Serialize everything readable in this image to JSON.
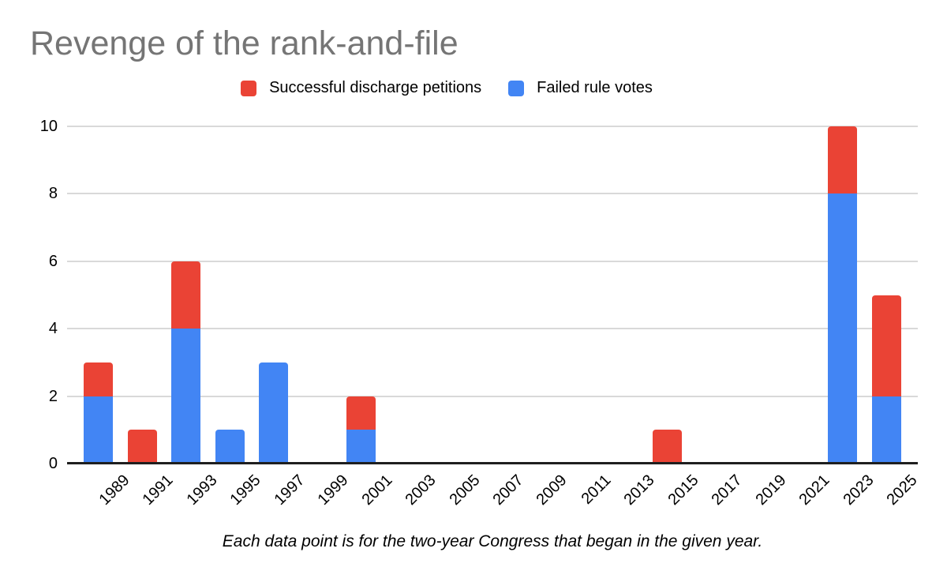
{
  "title": "Revenge of the rank-and-file",
  "caption": "Each data point is for the two-year Congress that began in the given year.",
  "legend": {
    "items": [
      {
        "label": "Successful discharge petitions",
        "color": "#EA4335"
      },
      {
        "label": "Failed rule votes",
        "color": "#4285F4"
      }
    ]
  },
  "chart_data": {
    "type": "bar",
    "stacked": true,
    "title": "Revenge of the rank-and-file",
    "xlabel": "",
    "ylabel": "",
    "categories": [
      "1989",
      "1991",
      "1993",
      "1995",
      "1997",
      "1999",
      "2001",
      "2003",
      "2005",
      "2007",
      "2009",
      "2011",
      "2013",
      "2015",
      "2017",
      "2019",
      "2021",
      "2023",
      "2025"
    ],
    "series": [
      {
        "name": "Failed rule votes",
        "color": "#4285F4",
        "values": [
          2,
          0,
          4,
          1,
          3,
          0,
          1,
          0,
          0,
          0,
          0,
          0,
          0,
          0,
          0,
          0,
          0,
          8,
          2
        ]
      },
      {
        "name": "Successful discharge petitions",
        "color": "#EA4335",
        "values": [
          1,
          1,
          2,
          0,
          0,
          0,
          1,
          0,
          0,
          0,
          0,
          0,
          0,
          1,
          0,
          0,
          0,
          2,
          3
        ]
      }
    ],
    "stack_order": "bottom-to-top",
    "totals": [
      3,
      1,
      6,
      1,
      3,
      0,
      2,
      0,
      0,
      0,
      0,
      0,
      0,
      1,
      0,
      0,
      0,
      10,
      5
    ],
    "yticks": [
      0,
      2,
      4,
      6,
      8,
      10
    ],
    "ylim": [
      0,
      10
    ],
    "grid": true,
    "legend_position": "top",
    "x_tick_rotation_deg": -45
  },
  "colors": {
    "title_text": "#757575",
    "gridline": "#d9d9d9",
    "axis_line": "#1f1f1f",
    "label_text": "#000000",
    "background": "#ffffff"
  }
}
